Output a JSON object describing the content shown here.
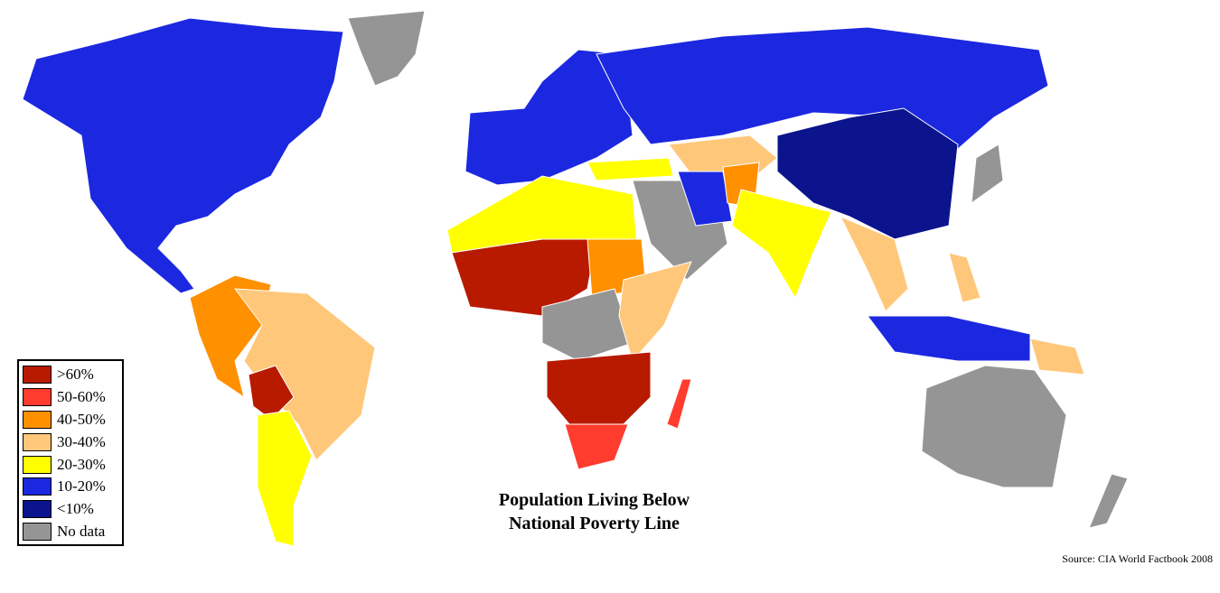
{
  "title_line1": "Population Living Below",
  "title_line2": "National Poverty Line",
  "source": "Source: CIA World Factbook 2008",
  "legend": [
    {
      "label": ">60%",
      "color": "#b81a00"
    },
    {
      "label": "50-60%",
      "color": "#ff3c2e"
    },
    {
      "label": "40-50%",
      "color": "#ff9000"
    },
    {
      "label": "30-40%",
      "color": "#ffc77a"
    },
    {
      "label": "20-30%",
      "color": "#ffff00"
    },
    {
      "label": "10-20%",
      "color": "#1c28e0"
    },
    {
      "label": "<10%",
      "color": "#0b148c"
    },
    {
      "label": "No data",
      "color": "#959595"
    }
  ]
}
